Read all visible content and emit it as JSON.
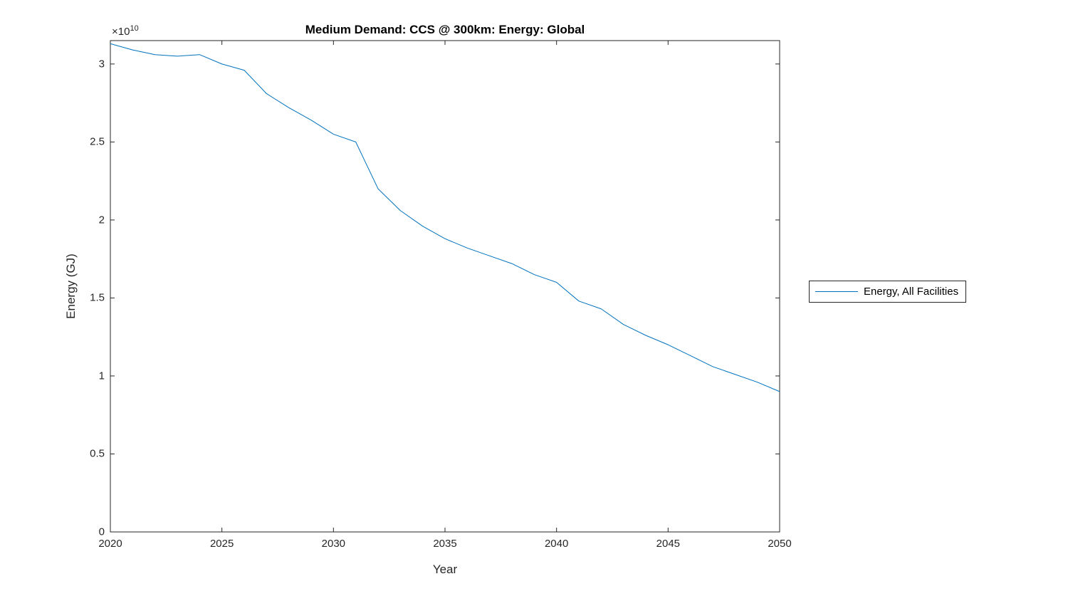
{
  "chart_data": {
    "type": "line",
    "title": "Medium Demand: CCS @ 300km: Energy: Global",
    "xlabel": "Year",
    "ylabel": "Energy (GJ)",
    "y_axis_multiplier": {
      "base": "×10",
      "exponent": "10"
    },
    "xlim": [
      2020,
      2050
    ],
    "ylim": [
      0,
      31500000000.0
    ],
    "x_ticks": [
      2020,
      2025,
      2030,
      2035,
      2040,
      2045,
      2050
    ],
    "x_tick_labels": [
      "2020",
      "2025",
      "2030",
      "2035",
      "2040",
      "2045",
      "2050"
    ],
    "y_ticks": [
      0,
      5000000000.0,
      10000000000.0,
      15000000000.0,
      20000000000.0,
      25000000000.0,
      30000000000.0
    ],
    "y_tick_labels": [
      "0",
      "0.5",
      "1",
      "1.5",
      "2",
      "2.5",
      "3"
    ],
    "grid": false,
    "axis_color": "#262626",
    "legend": {
      "position": "right-outside",
      "entries": [
        "Energy, All Facilities"
      ]
    },
    "series": [
      {
        "name": "Energy, All Facilities",
        "color": "#0072BD",
        "x": [
          2020,
          2021,
          2022,
          2023,
          2024,
          2025,
          2026,
          2027,
          2028,
          2029,
          2030,
          2031,
          2032,
          2033,
          2034,
          2035,
          2036,
          2037,
          2038,
          2039,
          2040,
          2041,
          2042,
          2043,
          2044,
          2045,
          2046,
          2047,
          2048,
          2049,
          2050
        ],
        "y": [
          31300000000.0,
          30900000000.0,
          30600000000.0,
          30500000000.0,
          30600000000.0,
          30000000000.0,
          29600000000.0,
          28100000000.0,
          27200000000.0,
          26400000000.0,
          25500000000.0,
          25000000000.0,
          22000000000.0,
          20600000000.0,
          19600000000.0,
          18800000000.0,
          18200000000.0,
          17700000000.0,
          17200000000.0,
          16500000000.0,
          16000000000.0,
          14800000000.0,
          14300000000.0,
          13300000000.0,
          12600000000.0,
          12000000000.0,
          11300000000.0,
          10600000000.0,
          10100000000.0,
          9600000000.0,
          9000000000.0
        ]
      }
    ]
  }
}
